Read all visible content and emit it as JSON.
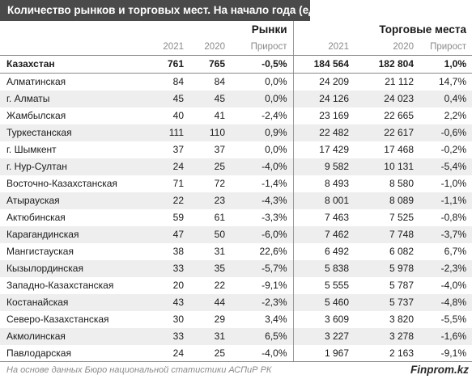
{
  "title": "Количество рынков и торговых мест. На начало года (ед.)",
  "headers": {
    "markets": "Рынки",
    "places": "Торговые места",
    "y2021": "2021",
    "y2020": "2020",
    "growth": "Прирост"
  },
  "total": {
    "name": "Казахстан",
    "r21": "761",
    "r20": "765",
    "rg": "-0,5%",
    "t21": "184 564",
    "t20": "182 804",
    "tg": "1,0%"
  },
  "rows": [
    {
      "name": "Алматинская",
      "r21": "84",
      "r20": "84",
      "rg": "0,0%",
      "t21": "24 209",
      "t20": "21 112",
      "tg": "14,7%"
    },
    {
      "name": "г. Алматы",
      "r21": "45",
      "r20": "45",
      "rg": "0,0%",
      "t21": "24 126",
      "t20": "24 023",
      "tg": "0,4%"
    },
    {
      "name": "Жамбылская",
      "r21": "40",
      "r20": "41",
      "rg": "-2,4%",
      "t21": "23 169",
      "t20": "22 665",
      "tg": "2,2%"
    },
    {
      "name": "Туркестанская",
      "r21": "111",
      "r20": "110",
      "rg": "0,9%",
      "t21": "22 482",
      "t20": "22 617",
      "tg": "-0,6%"
    },
    {
      "name": "г. Шымкент",
      "r21": "37",
      "r20": "37",
      "rg": "0,0%",
      "t21": "17 429",
      "t20": "17 468",
      "tg": "-0,2%"
    },
    {
      "name": "г. Нур-Султан",
      "r21": "24",
      "r20": "25",
      "rg": "-4,0%",
      "t21": "9 582",
      "t20": "10 131",
      "tg": "-5,4%"
    },
    {
      "name": "Восточно-Казахстанская",
      "r21": "71",
      "r20": "72",
      "rg": "-1,4%",
      "t21": "8 493",
      "t20": "8 580",
      "tg": "-1,0%"
    },
    {
      "name": "Атырауская",
      "r21": "22",
      "r20": "23",
      "rg": "-4,3%",
      "t21": "8 001",
      "t20": "8 089",
      "tg": "-1,1%"
    },
    {
      "name": "Актюбинская",
      "r21": "59",
      "r20": "61",
      "rg": "-3,3%",
      "t21": "7 463",
      "t20": "7 525",
      "tg": "-0,8%"
    },
    {
      "name": "Карагандинская",
      "r21": "47",
      "r20": "50",
      "rg": "-6,0%",
      "t21": "7 462",
      "t20": "7 748",
      "tg": "-3,7%"
    },
    {
      "name": "Мангистауская",
      "r21": "38",
      "r20": "31",
      "rg": "22,6%",
      "t21": "6 492",
      "t20": "6 082",
      "tg": "6,7%"
    },
    {
      "name": "Кызылординская",
      "r21": "33",
      "r20": "35",
      "rg": "-5,7%",
      "t21": "5 838",
      "t20": "5 978",
      "tg": "-2,3%"
    },
    {
      "name": "Западно-Казахстанская",
      "r21": "20",
      "r20": "22",
      "rg": "-9,1%",
      "t21": "5 555",
      "t20": "5 787",
      "tg": "-4,0%"
    },
    {
      "name": "Костанайская",
      "r21": "43",
      "r20": "44",
      "rg": "-2,3%",
      "t21": "5 460",
      "t20": "5 737",
      "tg": "-4,8%"
    },
    {
      "name": "Северо-Казахстанская",
      "r21": "30",
      "r20": "29",
      "rg": "3,4%",
      "t21": "3 609",
      "t20": "3 820",
      "tg": "-5,5%"
    },
    {
      "name": "Акмолинская",
      "r21": "33",
      "r20": "31",
      "rg": "6,5%",
      "t21": "3 227",
      "t20": "3 278",
      "tg": "-1,6%"
    },
    {
      "name": "Павлодарская",
      "r21": "24",
      "r20": "25",
      "rg": "-4,0%",
      "t21": "1 967",
      "t20": "2 163",
      "tg": "-9,1%"
    }
  ],
  "footer": {
    "note": "На основе данных Бюро национальной статистики АСПиР РК",
    "brand": "Finprom.kz"
  }
}
